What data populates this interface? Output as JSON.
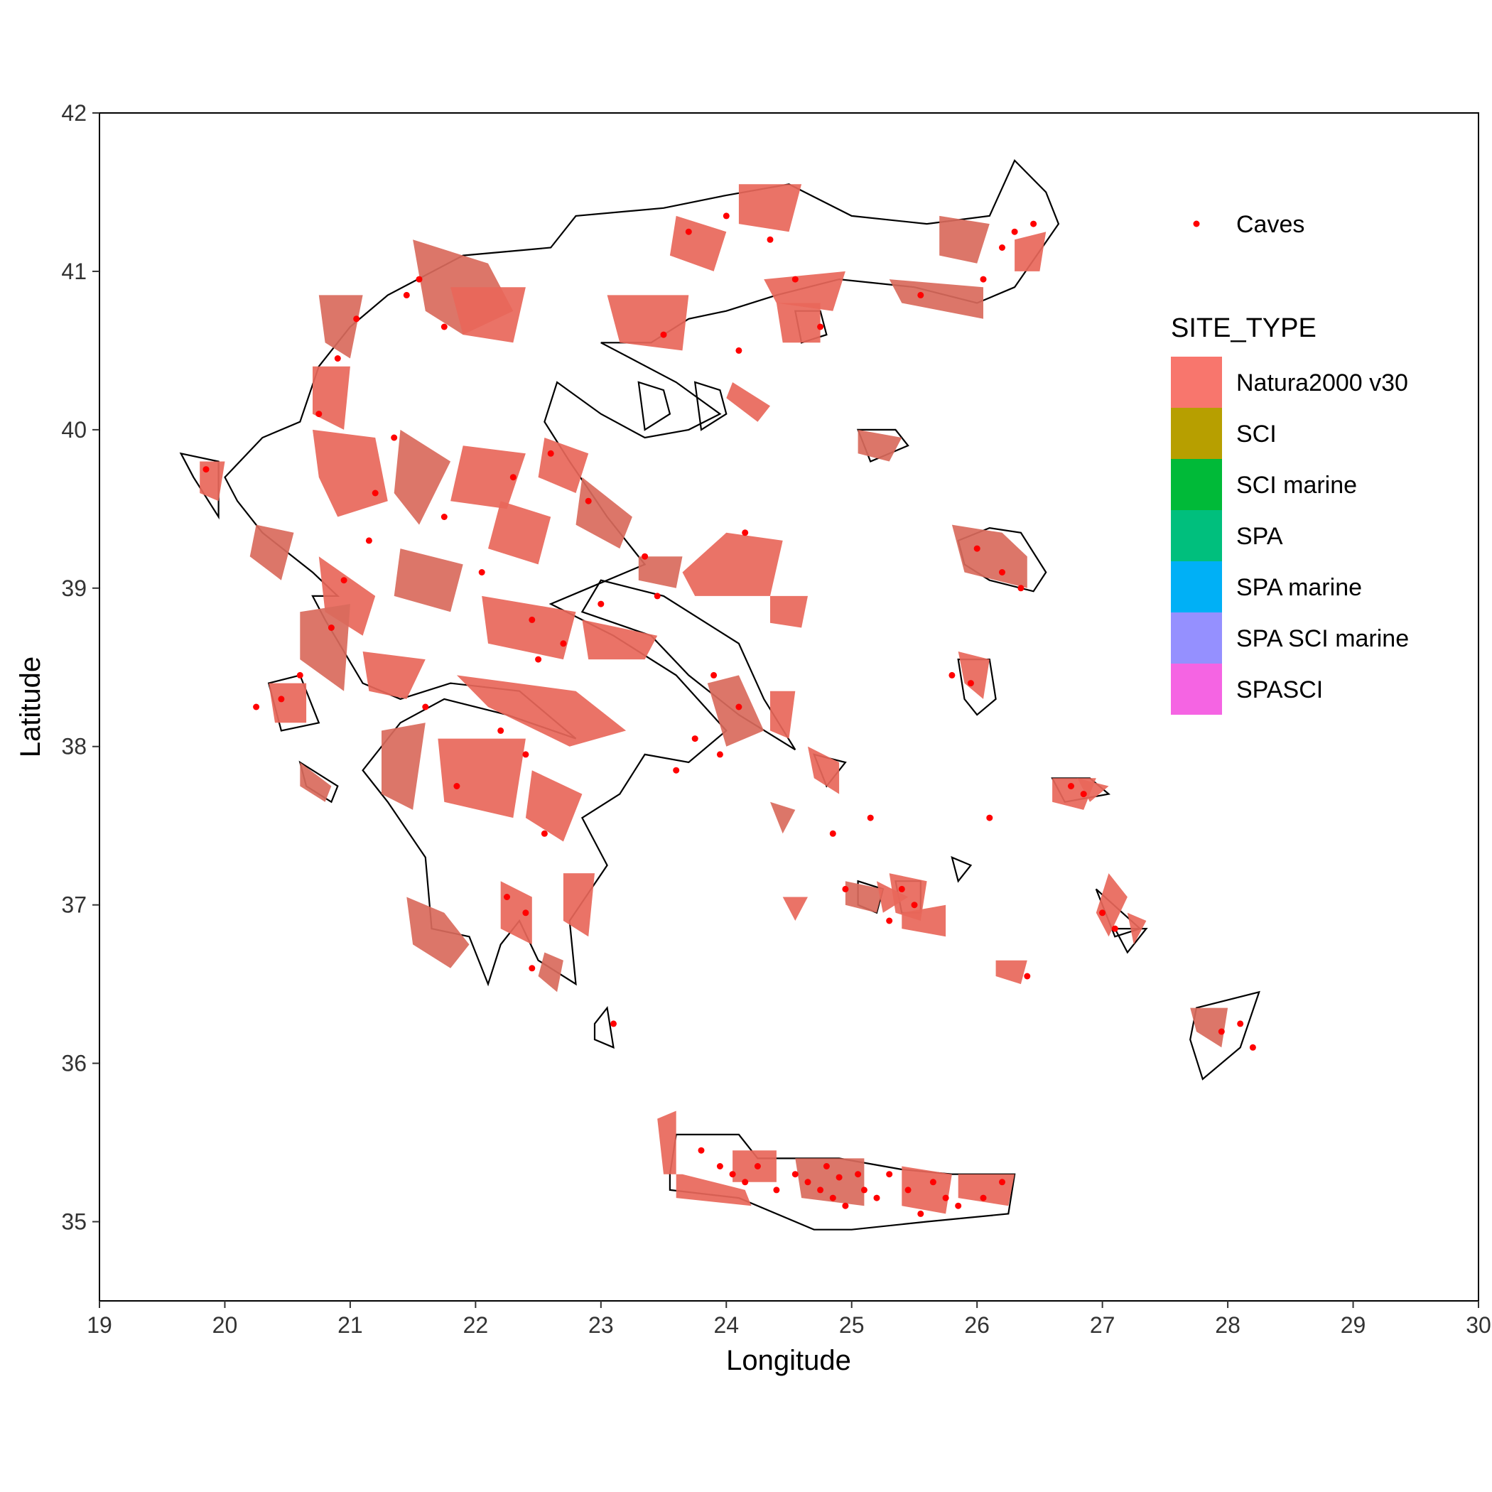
{
  "chart_data": {
    "type": "map",
    "xlabel": "Longitude",
    "ylabel": "Latitude",
    "xlim": [
      19,
      30
    ],
    "ylim": [
      34.5,
      42
    ],
    "x_ticks": [
      "19",
      "20",
      "21",
      "22",
      "23",
      "24",
      "25",
      "26",
      "27",
      "28",
      "29",
      "30"
    ],
    "y_ticks": [
      "35",
      "36",
      "37",
      "38",
      "39",
      "40",
      "41",
      "42"
    ],
    "grid": false,
    "legend_placement": "right",
    "legend_points": {
      "label": "Caves",
      "color": "#ff0000"
    },
    "legend": {
      "title": "SITE_TYPE",
      "entries": [
        {
          "label": "Natura2000 v30",
          "color": "#F8766D"
        },
        {
          "label": "SCI",
          "color": "#B79F00"
        },
        {
          "label": "SCI marine",
          "color": "#00BA38"
        },
        {
          "label": "SPA",
          "color": "#00BF7D"
        },
        {
          "label": "SPA marine",
          "color": "#00B0F6"
        },
        {
          "label": "SPA SCI marine",
          "color": "#9590FF"
        },
        {
          "label": "SPASCI",
          "color": "#F564E3"
        }
      ]
    },
    "colors": {
      "outline": "#000000",
      "sites": "#E8675A",
      "sites_dark": "#D96A5C",
      "caves": "#ff0000"
    }
  }
}
